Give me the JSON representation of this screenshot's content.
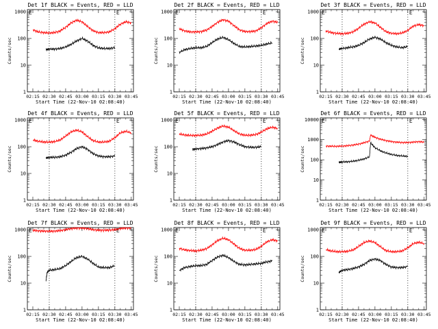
{
  "chart_data": [
    {
      "type": "line",
      "title": "Det 1f BLACK = Events, RED = LLD",
      "xlabel": "Start Time (22-Nov-10 02:08:40)",
      "ylabel": "Counts/sec",
      "flag": "E",
      "x_ticks": [
        "02:15",
        "02:30",
        "02:45",
        "03:00",
        "03:15",
        "03:30",
        "03:45"
      ],
      "y_ticks": [
        "1",
        "10",
        "100",
        "1000"
      ],
      "ylim": [
        1,
        1200
      ],
      "log_y": true,
      "markers": [
        "02:30",
        "03:30"
      ],
      "series": [
        {
          "color": "#ff0000",
          "x": [
            "02:15",
            "02:20",
            "02:25",
            "02:30",
            "02:35",
            "02:40",
            "02:45",
            "02:50",
            "02:55",
            "03:00",
            "03:05",
            "03:10",
            "03:15",
            "03:20",
            "03:25",
            "03:30",
            "03:35",
            "03:40",
            "03:45"
          ],
          "values": [
            210,
            175,
            165,
            160,
            165,
            190,
            260,
            380,
            480,
            420,
            280,
            195,
            165,
            165,
            175,
            230,
            340,
            420,
            380
          ]
        },
        {
          "color": "#000000",
          "x": [
            "02:27",
            "02:30",
            "02:35",
            "02:40",
            "02:45",
            "02:50",
            "02:55",
            "03:00",
            "03:05",
            "03:10",
            "03:15",
            "03:20",
            "03:25",
            "03:30"
          ],
          "values": [
            38,
            40,
            40,
            42,
            48,
            60,
            80,
            100,
            80,
            55,
            44,
            42,
            42,
            45
          ]
        }
      ]
    },
    {
      "type": "line",
      "title": "Det 2f BLACK = Events, RED = LLD",
      "xlabel": "Start Time (22-Nov-10 02:08:40)",
      "ylabel": "Counts/sec",
      "flag": "E",
      "x_ticks": [
        "02:15",
        "02:30",
        "02:45",
        "03:00",
        "03:15",
        "03:30",
        "03:45"
      ],
      "y_ticks": [
        "1",
        "10",
        "100",
        "1000"
      ],
      "ylim": [
        1,
        1200
      ],
      "log_y": true,
      "markers": [
        "02:30",
        "03:30"
      ],
      "series": [
        {
          "color": "#ff0000",
          "x": [
            "02:15",
            "02:20",
            "02:25",
            "02:30",
            "02:35",
            "02:40",
            "02:45",
            "02:50",
            "02:55",
            "03:00",
            "03:05",
            "03:10",
            "03:15",
            "03:20",
            "03:25",
            "03:30",
            "03:35",
            "03:40",
            "03:45"
          ],
          "values": [
            230,
            190,
            175,
            175,
            180,
            205,
            280,
            400,
            500,
            440,
            300,
            210,
            180,
            180,
            190,
            250,
            360,
            440,
            400
          ]
        },
        {
          "color": "#000000",
          "x": [
            "02:15",
            "02:20",
            "02:25",
            "02:30",
            "02:35",
            "02:40",
            "02:45",
            "02:50",
            "02:55",
            "03:00",
            "03:05",
            "03:10",
            "03:15",
            "03:20",
            "03:25",
            "03:30",
            "03:35",
            "03:40"
          ],
          "values": [
            30,
            38,
            42,
            45,
            45,
            50,
            70,
            95,
            110,
            90,
            65,
            50,
            48,
            50,
            52,
            55,
            62,
            68
          ]
        }
      ]
    },
    {
      "type": "line",
      "title": "Det 3f BLACK = Events, RED = LLD",
      "xlabel": "Start Time (22-Nov-10 02:08:40)",
      "ylabel": "Counts/sec",
      "flag": "E",
      "x_ticks": [
        "02:15",
        "02:30",
        "02:45",
        "03:00",
        "03:15",
        "03:30",
        "03:45"
      ],
      "y_ticks": [
        "1",
        "10",
        "100",
        "1000"
      ],
      "ylim": [
        1,
        1200
      ],
      "log_y": true,
      "markers": [
        "02:30",
        "03:30"
      ],
      "series": [
        {
          "color": "#ff0000",
          "x": [
            "02:15",
            "02:20",
            "02:25",
            "02:30",
            "02:35",
            "02:40",
            "02:45",
            "02:50",
            "02:55",
            "03:00",
            "03:05",
            "03:10",
            "03:15",
            "03:20",
            "03:25",
            "03:30",
            "03:35",
            "03:40",
            "03:45"
          ],
          "values": [
            190,
            165,
            155,
            150,
            155,
            175,
            240,
            340,
            420,
            380,
            260,
            180,
            155,
            150,
            160,
            200,
            290,
            330,
            300
          ]
        },
        {
          "color": "#000000",
          "x": [
            "02:27",
            "02:30",
            "02:35",
            "02:40",
            "02:45",
            "02:50",
            "02:55",
            "03:00",
            "03:05",
            "03:10",
            "03:15",
            "03:20",
            "03:25",
            "03:30"
          ],
          "values": [
            40,
            42,
            45,
            48,
            55,
            70,
            95,
            110,
            95,
            70,
            55,
            48,
            45,
            50
          ]
        }
      ]
    },
    {
      "type": "line",
      "title": "Det 4f BLACK = Events, RED = LLD",
      "xlabel": "Start Time (22-Nov-10 02:08:40)",
      "ylabel": "Counts/sec",
      "flag": "E",
      "x_ticks": [
        "02:15",
        "02:30",
        "02:45",
        "03:00",
        "03:15",
        "03:30",
        "03:45"
      ],
      "y_ticks": [
        "1",
        "10",
        "100",
        "1000"
      ],
      "ylim": [
        1,
        1200
      ],
      "log_y": true,
      "markers": [
        "02:30",
        "03:30"
      ],
      "series": [
        {
          "color": "#ff0000",
          "x": [
            "02:15",
            "02:20",
            "02:25",
            "02:30",
            "02:35",
            "02:40",
            "02:45",
            "02:50",
            "02:55",
            "03:00",
            "03:05",
            "03:10",
            "03:15",
            "03:20",
            "03:25",
            "03:30",
            "03:35",
            "03:40",
            "03:45"
          ],
          "values": [
            180,
            160,
            150,
            150,
            155,
            180,
            250,
            360,
            420,
            360,
            240,
            170,
            150,
            150,
            160,
            220,
            330,
            380,
            330
          ]
        },
        {
          "color": "#000000",
          "x": [
            "02:27",
            "02:30",
            "02:35",
            "02:40",
            "02:45",
            "02:50",
            "02:55",
            "03:00",
            "03:05",
            "03:10",
            "03:15",
            "03:20",
            "03:25",
            "03:30"
          ],
          "values": [
            38,
            40,
            40,
            42,
            48,
            62,
            85,
            100,
            80,
            55,
            45,
            42,
            42,
            45
          ]
        }
      ]
    },
    {
      "type": "line",
      "title": "Det 5f BLACK = Events, RED = LLD",
      "xlabel": "Start Time (22-Nov-10 02:08:40)",
      "ylabel": "Counts/sec",
      "flag": "E",
      "x_ticks": [
        "02:15",
        "02:30",
        "02:45",
        "03:00",
        "03:15",
        "03:30",
        "03:45"
      ],
      "y_ticks": [
        "1",
        "10",
        "100",
        "1000"
      ],
      "ylim": [
        1,
        1200
      ],
      "log_y": true,
      "markers": [
        "02:30",
        "03:30"
      ],
      "series": [
        {
          "color": "#ff0000",
          "x": [
            "02:15",
            "02:20",
            "02:25",
            "02:30",
            "02:35",
            "02:40",
            "02:45",
            "02:50",
            "02:55",
            "03:00",
            "03:05",
            "03:10",
            "03:15",
            "03:20",
            "03:25",
            "03:30",
            "03:35",
            "03:40",
            "03:45"
          ],
          "values": [
            300,
            275,
            265,
            265,
            270,
            300,
            380,
            500,
            600,
            540,
            400,
            300,
            270,
            270,
            285,
            350,
            470,
            540,
            480
          ]
        },
        {
          "color": "#000000",
          "x": [
            "02:27",
            "02:30",
            "02:35",
            "02:40",
            "02:45",
            "02:50",
            "02:55",
            "03:00",
            "03:05",
            "03:10",
            "03:15",
            "03:20",
            "03:25",
            "03:30"
          ],
          "values": [
            80,
            82,
            85,
            90,
            100,
            120,
            150,
            170,
            150,
            120,
            100,
            95,
            95,
            100
          ]
        }
      ]
    },
    {
      "type": "line",
      "title": "Det 6f BLACK = Events, RED = LLD",
      "xlabel": "Start Time (22-Nov-10 02:08:40)",
      "ylabel": "Counts/sec",
      "flag": "E",
      "x_ticks": [
        "02:15",
        "02:30",
        "02:45",
        "03:00",
        "03:15",
        "03:30",
        "03:45"
      ],
      "y_ticks": [
        "1",
        "10",
        "100",
        "1000",
        "10000"
      ],
      "ylim": [
        1,
        12000
      ],
      "log_y": true,
      "markers": [
        "02:30",
        "03:30"
      ],
      "series": [
        {
          "color": "#ff0000",
          "x": [
            "02:15",
            "02:20",
            "02:25",
            "02:30",
            "02:35",
            "02:40",
            "02:45",
            "02:50",
            "02:55",
            "02:56",
            "03:00",
            "03:05",
            "03:10",
            "03:15",
            "03:20",
            "03:25",
            "03:30",
            "03:35",
            "03:40",
            "03:45"
          ],
          "values": [
            480,
            470,
            470,
            480,
            500,
            540,
            600,
            700,
            850,
            1700,
            1300,
            1050,
            900,
            800,
            750,
            720,
            720,
            750,
            800,
            750
          ]
        },
        {
          "color": "#000000",
          "x": [
            "02:27",
            "02:30",
            "02:35",
            "02:40",
            "02:45",
            "02:50",
            "02:55",
            "02:56",
            "03:00",
            "03:05",
            "03:10",
            "03:15",
            "03:20",
            "03:25",
            "03:30"
          ],
          "values": [
            75,
            78,
            80,
            85,
            95,
            110,
            140,
            700,
            400,
            280,
            220,
            185,
            165,
            155,
            150
          ]
        }
      ]
    },
    {
      "type": "line",
      "title": "Det 7f BLACK = Events, RED = LLD",
      "xlabel": "Start Time (22-Nov-10 02:08:40)",
      "ylabel": "Counts/sec",
      "flag": "E",
      "x_ticks": [
        "02:15",
        "02:30",
        "02:45",
        "03:00",
        "03:15",
        "03:30",
        "03:45"
      ],
      "y_ticks": [
        "1",
        "10",
        "100",
        "1000"
      ],
      "ylim": [
        1,
        1200
      ],
      "log_y": true,
      "markers": [
        "02:30",
        "03:30"
      ],
      "series": [
        {
          "color": "#ff0000",
          "x": [
            "02:15",
            "02:20",
            "02:25",
            "02:30",
            "02:35",
            "02:40",
            "02:45",
            "02:50",
            "02:55",
            "03:00",
            "03:05",
            "03:10",
            "03:15",
            "03:20",
            "03:25",
            "03:30",
            "03:35",
            "03:40",
            "03:45"
          ],
          "values": [
            950,
            900,
            880,
            870,
            880,
            920,
            1000,
            1100,
            1150,
            1150,
            1100,
            1000,
            950,
            950,
            960,
            1000,
            1100,
            1150,
            1150
          ]
        },
        {
          "color": "#000000",
          "x": [
            "02:27",
            "02:28",
            "02:30",
            "02:35",
            "02:40",
            "02:45",
            "02:50",
            "02:55",
            "03:00",
            "03:05",
            "03:10",
            "03:15",
            "03:20",
            "03:25",
            "03:30"
          ],
          "values": [
            12,
            25,
            30,
            32,
            35,
            45,
            65,
            90,
            100,
            80,
            55,
            40,
            38,
            38,
            45
          ]
        }
      ]
    },
    {
      "type": "line",
      "title": "Det 8f BLACK = Events, RED = LLD",
      "xlabel": "Start Time (22-Nov-10 02:08:40)",
      "ylabel": "Counts/sec",
      "flag": "E",
      "x_ticks": [
        "02:15",
        "02:30",
        "02:45",
        "03:00",
        "03:15",
        "03:30",
        "03:45"
      ],
      "y_ticks": [
        "1",
        "10",
        "100",
        "1000"
      ],
      "ylim": [
        1,
        1200
      ],
      "log_y": true,
      "markers": [
        "02:30",
        "03:30"
      ],
      "series": [
        {
          "color": "#ff0000",
          "x": [
            "02:15",
            "02:20",
            "02:25",
            "02:30",
            "02:35",
            "02:40",
            "02:45",
            "02:50",
            "02:55",
            "03:00",
            "03:05",
            "03:10",
            "03:15",
            "03:20",
            "03:25",
            "03:30",
            "03:35",
            "03:40",
            "03:45"
          ],
          "values": [
            200,
            175,
            165,
            160,
            170,
            195,
            270,
            390,
            480,
            420,
            290,
            200,
            170,
            170,
            180,
            240,
            350,
            420,
            380
          ]
        },
        {
          "color": "#000000",
          "x": [
            "02:15",
            "02:20",
            "02:25",
            "02:30",
            "02:35",
            "02:40",
            "02:45",
            "02:50",
            "02:55",
            "03:00",
            "03:05",
            "03:10",
            "03:15",
            "03:20",
            "03:25",
            "03:30",
            "03:35",
            "03:40"
          ],
          "values": [
            30,
            38,
            42,
            45,
            45,
            50,
            70,
            95,
            110,
            90,
            65,
            50,
            48,
            50,
            52,
            55,
            62,
            68
          ]
        }
      ]
    },
    {
      "type": "line",
      "title": "Det 9f BLACK = Events, RED = LLD",
      "xlabel": "Start Time (22-Nov-10 02:08:40)",
      "ylabel": "Counts/sec",
      "flag": "E",
      "x_ticks": [
        "02:15",
        "02:30",
        "02:45",
        "03:00",
        "03:15",
        "03:30",
        "03:45"
      ],
      "y_ticks": [
        "1",
        "10",
        "100",
        "1000"
      ],
      "ylim": [
        1,
        1200
      ],
      "log_y": true,
      "markers": [
        "02:30",
        "03:30"
      ],
      "series": [
        {
          "color": "#ff0000",
          "x": [
            "02:15",
            "02:20",
            "02:25",
            "02:30",
            "02:35",
            "02:40",
            "02:45",
            "02:50",
            "02:55",
            "03:00",
            "03:05",
            "03:10",
            "03:15",
            "03:20",
            "03:25",
            "03:30",
            "03:35",
            "03:40",
            "03:45"
          ],
          "values": [
            180,
            160,
            150,
            150,
            155,
            175,
            235,
            330,
            380,
            330,
            230,
            165,
            150,
            150,
            160,
            210,
            300,
            340,
            300
          ]
        },
        {
          "color": "#000000",
          "x": [
            "02:27",
            "02:30",
            "02:35",
            "02:40",
            "02:45",
            "02:50",
            "02:55",
            "03:00",
            "03:05",
            "03:10",
            "03:15",
            "03:20",
            "03:25",
            "03:30"
          ],
          "values": [
            25,
            30,
            32,
            35,
            40,
            50,
            70,
            80,
            70,
            50,
            40,
            38,
            38,
            42
          ]
        }
      ]
    }
  ]
}
